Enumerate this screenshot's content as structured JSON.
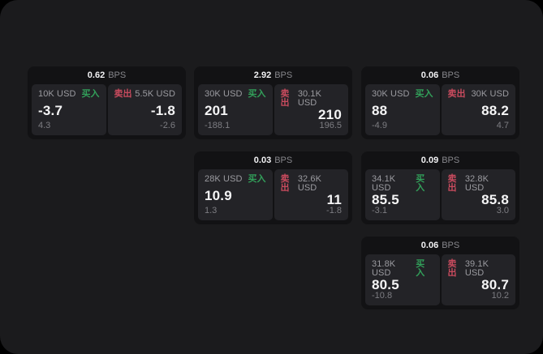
{
  "colors": {
    "background": "#000000",
    "panel_bg": "#1b1b1d",
    "card_bg": "#121214",
    "tile_bg": "#232327",
    "buy_green": "#32a05a",
    "sell_red": "#c94b5e"
  },
  "labels": {
    "bps_unit": "BPS",
    "buy": "买入",
    "sell": "卖出"
  },
  "cards": [
    {
      "bps": "0.62",
      "buy": {
        "amount": "10K USD",
        "price": "-3.7",
        "delta": "4.3"
      },
      "sell": {
        "amount": "5.5K USD",
        "price": "-1.8",
        "delta": "-2.6"
      }
    },
    {
      "bps": "2.92",
      "buy": {
        "amount": "30K USD",
        "price": "201",
        "delta": "-188.1"
      },
      "sell": {
        "amount": "30.1K USD",
        "price": "210",
        "delta": "196.5"
      }
    },
    {
      "bps": "0.06",
      "buy": {
        "amount": "30K USD",
        "price": "88",
        "delta": "-4.9"
      },
      "sell": {
        "amount": "30K USD",
        "price": "88.2",
        "delta": "4.7"
      }
    },
    {
      "bps": "0.03",
      "buy": {
        "amount": "28K USD",
        "price": "10.9",
        "delta": "1.3"
      },
      "sell": {
        "amount": "32.6K USD",
        "price": "11",
        "delta": "-1.8"
      }
    },
    {
      "bps": "0.09",
      "buy": {
        "amount": "34.1K USD",
        "price": "85.5",
        "delta": "-3.1"
      },
      "sell": {
        "amount": "32.8K USD",
        "price": "85.8",
        "delta": "3.0"
      }
    },
    {
      "bps": "0.06",
      "buy": {
        "amount": "31.8K USD",
        "price": "80.5",
        "delta": "-10.8"
      },
      "sell": {
        "amount": "39.1K USD",
        "price": "80.7",
        "delta": "10.2"
      }
    }
  ]
}
